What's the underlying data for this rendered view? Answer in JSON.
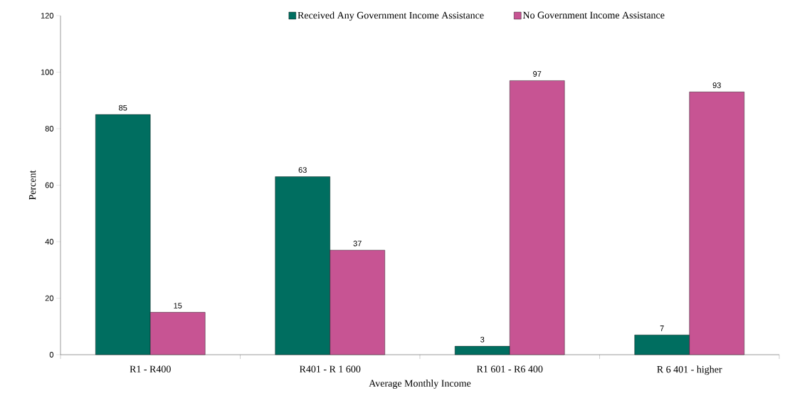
{
  "chart_data": {
    "type": "bar",
    "xlabel": "Average Monthly Income",
    "ylabel": "Percent",
    "categories": [
      "R1 - R400",
      "R401 - R 1 600",
      "R1 601 - R6 400",
      "R 6 401 - higher"
    ],
    "series": [
      {
        "name": "Received Any Government Income Assistance",
        "color": "#006e60",
        "values": [
          85,
          63,
          3,
          7
        ]
      },
      {
        "name": "No Government Income Assistance",
        "color": "#c75493",
        "values": [
          15,
          37,
          97,
          93
        ]
      }
    ],
    "ylim": [
      0,
      120
    ],
    "yticks": [
      0,
      20,
      40,
      60,
      80,
      100,
      120
    ],
    "data_labels": true,
    "legend": "top",
    "grid": false
  }
}
